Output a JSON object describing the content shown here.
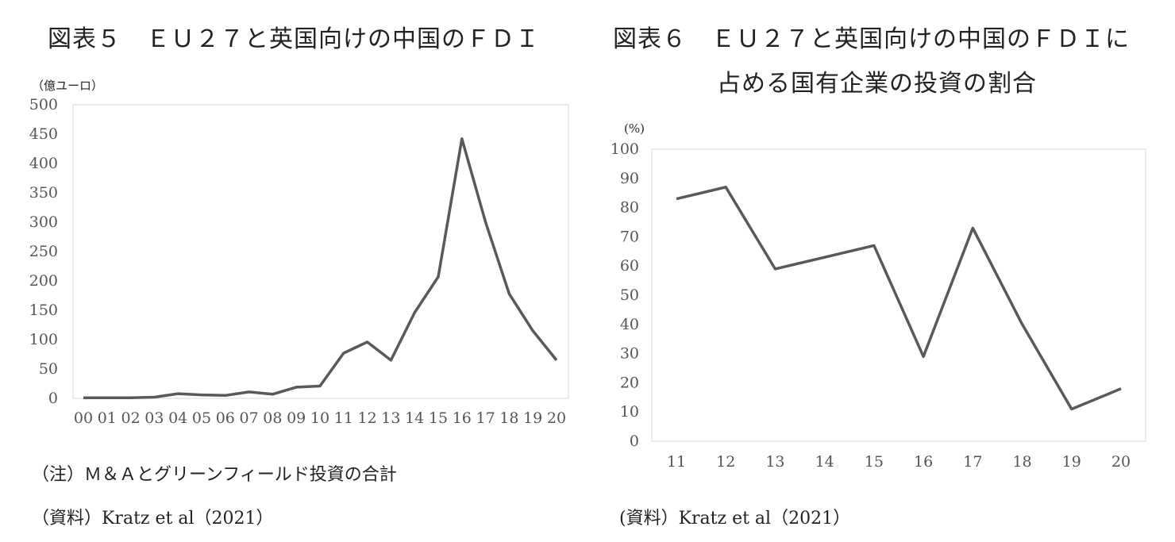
{
  "chart_data": [
    {
      "type": "line",
      "title": "図表５　ＥＵ２７と英国向けの中国のＦＤＩ",
      "unit_label": "（億ユーロ）",
      "x": [
        "00",
        "01",
        "02",
        "03",
        "04",
        "05",
        "06",
        "07",
        "08",
        "09",
        "10",
        "11",
        "12",
        "13",
        "14",
        "15",
        "16",
        "17",
        "18",
        "19",
        "20"
      ],
      "values": [
        1,
        1,
        1,
        2,
        8,
        6,
        5,
        11,
        7,
        19,
        21,
        77,
        96,
        65,
        146,
        207,
        442,
        300,
        178,
        115,
        65
      ],
      "ylim": [
        0,
        500
      ],
      "yticks": [
        0,
        50,
        100,
        150,
        200,
        250,
        300,
        350,
        400,
        450,
        500
      ],
      "note": "（注）Ｍ＆Ａとグリーンフィールド投資の合計",
      "source": "（資料）Kratz et al（2021）",
      "line_color": "#595959"
    },
    {
      "type": "line",
      "title_line1": "図表６　ＥＵ２７と英国向けの中国のＦＤＩに",
      "title_line2": "占める国有企業の投資の割合",
      "unit_label": "(%)",
      "x": [
        "11",
        "12",
        "13",
        "14",
        "15",
        "16",
        "17",
        "18",
        "19",
        "20"
      ],
      "values": [
        83,
        87,
        59,
        63,
        67,
        29,
        73,
        40,
        11,
        18
      ],
      "ylim": [
        0,
        100
      ],
      "yticks": [
        0,
        10,
        20,
        30,
        40,
        50,
        60,
        70,
        80,
        90,
        100
      ],
      "source": "(資料）Kratz et al（2021）",
      "line_color": "#595959"
    }
  ]
}
